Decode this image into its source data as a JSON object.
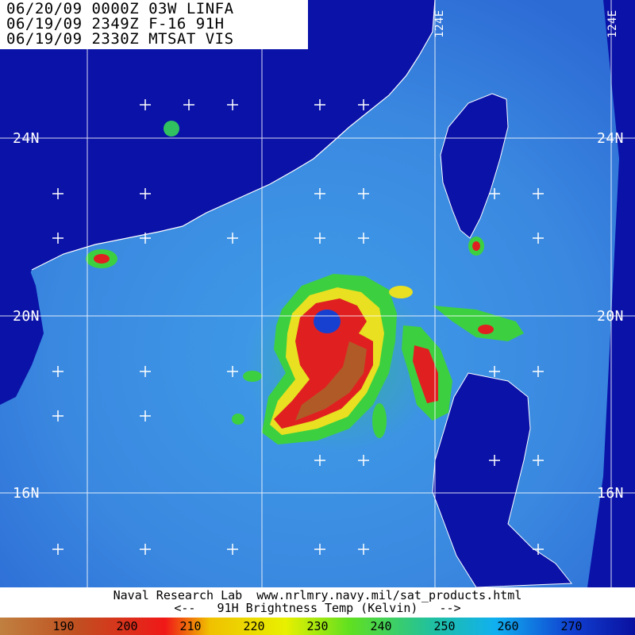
{
  "header": {
    "line1": "06/20/09 0000Z 03W LINFA",
    "line2": "06/19/09 2349Z F-16 91H",
    "line3": "06/19/09 2330Z MTSAT VIS"
  },
  "map_labels": {
    "lat_24_left": "24N",
    "lat_24_right": "24N",
    "lat_20_left": "20N",
    "lat_20_right": "20N",
    "lat_16_left": "16N",
    "lat_16_right": "16N",
    "lon_top_1": "124E",
    "lon_top_2": "124E"
  },
  "footer": {
    "line1": "Naval Research Lab  www.nrlmry.navy.mil/sat_products.html",
    "line2": "<--   91H Brightness Temp (Kelvin)   -->"
  },
  "scale": {
    "ticks": [
      "190",
      "200",
      "210",
      "220",
      "230",
      "240",
      "250",
      "260",
      "270"
    ],
    "colors": [
      "#b06020",
      "#d03018",
      "#f02020",
      "#f0d000",
      "#c8f000",
      "#40d040",
      "#20c8b0",
      "#10a0f0",
      "#1030d0"
    ]
  }
}
